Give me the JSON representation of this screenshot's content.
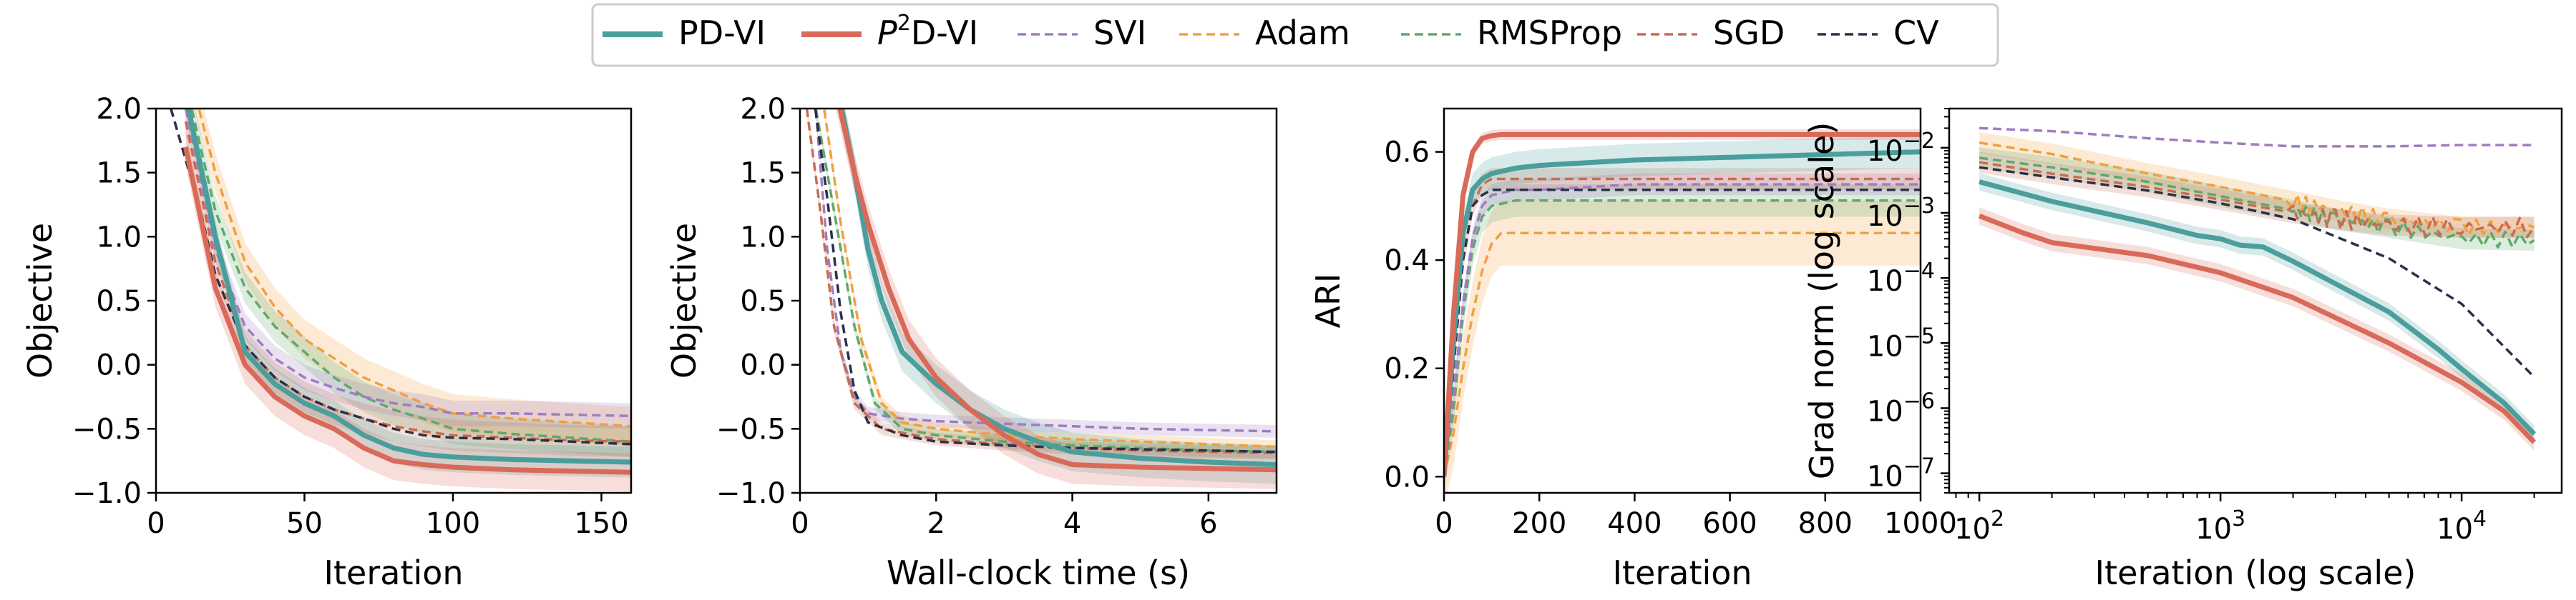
{
  "colors": {
    "pdvi": "#4a9e9b",
    "p2dvi": "#d96a5a",
    "svi": "#a07cc0",
    "adam": "#f0a040",
    "rmsprop": "#5fa86a",
    "sgd": "#c96c50",
    "cv": "#2b2f4a"
  },
  "legend": {
    "entries": [
      {
        "key": "pdvi",
        "label": "PD-VI",
        "style": "solid"
      },
      {
        "key": "p2dvi",
        "label_pre": "P",
        "label_sup": "2",
        "label_post": "D-VI",
        "style": "solid"
      },
      {
        "key": "svi",
        "label": "SVI",
        "style": "dashed"
      },
      {
        "key": "adam",
        "label": "Adam",
        "style": "dashed"
      },
      {
        "key": "rmsprop",
        "label": "RMSProp",
        "style": "dashed"
      },
      {
        "key": "sgd",
        "label": "SGD",
        "style": "dashed"
      },
      {
        "key": "cv",
        "label": "CV",
        "style": "dashed"
      }
    ]
  },
  "chart_data": [
    {
      "id": "p1",
      "type": "line",
      "xlabel": "Iteration",
      "ylabel": "Objective",
      "xlim": [
        0,
        160
      ],
      "ylim": [
        -1.0,
        2.0
      ],
      "xticks": [
        0,
        50,
        100,
        150
      ],
      "yticks": [
        -1.0,
        -0.5,
        0.0,
        0.5,
        1.0,
        1.5,
        2.0
      ],
      "xtick_labels": [
        "0",
        "50",
        "100",
        "150"
      ],
      "ytick_labels": [
        "−1.0",
        "−0.5",
        "0.0",
        "0.5",
        "1.0",
        "1.5",
        "2.0"
      ],
      "series": [
        {
          "key": "adam",
          "x": [
            10,
            20,
            30,
            40,
            50,
            60,
            70,
            80,
            90,
            100,
            120,
            140,
            160
          ],
          "y": [
            2.4,
            1.5,
            0.8,
            0.45,
            0.2,
            0.05,
            -0.1,
            -0.2,
            -0.3,
            -0.38,
            -0.42,
            -0.45,
            -0.48
          ],
          "band": 0.15
        },
        {
          "key": "rmsprop",
          "x": [
            10,
            20,
            30,
            40,
            50,
            60,
            70,
            80,
            90,
            100,
            120,
            140,
            160
          ],
          "y": [
            2.2,
            1.2,
            0.6,
            0.3,
            0.1,
            -0.1,
            -0.25,
            -0.35,
            -0.42,
            -0.5,
            -0.54,
            -0.57,
            -0.6
          ],
          "band": 0.12
        },
        {
          "key": "svi",
          "x": [
            10,
            20,
            30,
            40,
            50,
            60,
            70,
            80,
            90,
            100,
            120,
            140,
            160
          ],
          "y": [
            2.0,
            0.9,
            0.3,
            0.05,
            -0.1,
            -0.18,
            -0.25,
            -0.3,
            -0.33,
            -0.38,
            -0.38,
            -0.39,
            -0.4
          ],
          "band": 0.1
        },
        {
          "key": "sgd",
          "x": [
            10,
            20,
            30,
            40,
            50,
            60,
            70,
            80,
            90,
            100,
            120,
            140,
            160
          ],
          "y": [
            1.9,
            0.8,
            0.15,
            -0.1,
            -0.25,
            -0.35,
            -0.42,
            -0.48,
            -0.52,
            -0.55,
            -0.57,
            -0.59,
            -0.6
          ],
          "band": 0.12
        },
        {
          "key": "cv",
          "x": [
            5,
            10,
            15,
            20,
            30,
            40,
            50,
            60,
            70,
            80,
            90,
            100,
            120,
            140,
            160
          ],
          "y": [
            2.0,
            1.6,
            1.2,
            0.7,
            0.15,
            -0.1,
            -0.25,
            -0.35,
            -0.42,
            -0.5,
            -0.55,
            -0.57,
            -0.58,
            -0.6,
            -0.62
          ],
          "band": 0.0
        },
        {
          "key": "pdvi",
          "x": [
            10,
            20,
            30,
            40,
            50,
            60,
            70,
            80,
            90,
            100,
            120,
            140,
            160
          ],
          "y": [
            2.1,
            1.0,
            0.1,
            -0.15,
            -0.3,
            -0.4,
            -0.55,
            -0.65,
            -0.7,
            -0.72,
            -0.74,
            -0.75,
            -0.76
          ],
          "band": 0.12
        },
        {
          "key": "p2dvi",
          "x": [
            10,
            20,
            30,
            40,
            50,
            60,
            70,
            80,
            90,
            100,
            120,
            140,
            160
          ],
          "y": [
            1.7,
            0.6,
            0.0,
            -0.25,
            -0.4,
            -0.5,
            -0.65,
            -0.75,
            -0.78,
            -0.8,
            -0.82,
            -0.83,
            -0.84
          ],
          "band": 0.15
        }
      ]
    },
    {
      "id": "p2",
      "type": "line",
      "xlabel": "Wall-clock time (s)",
      "ylabel": "Objective",
      "xlim": [
        0,
        7
      ],
      "ylim": [
        -1.0,
        2.0
      ],
      "xticks": [
        0,
        2,
        4,
        6
      ],
      "yticks": [
        -1.0,
        -0.5,
        0.0,
        0.5,
        1.0,
        1.5,
        2.0
      ],
      "xtick_labels": [
        "0",
        "2",
        "4",
        "6"
      ],
      "ytick_labels": [
        "−1.0",
        "−0.5",
        "0.0",
        "0.5",
        "1.0",
        "1.5",
        "2.0"
      ],
      "series": [
        {
          "key": "svi",
          "x": [
            0.2,
            0.4,
            0.6,
            0.8,
            1.0,
            1.5,
            2.0,
            3.0,
            4.0,
            5.0,
            6.0,
            7.0
          ],
          "y": [
            2.2,
            0.9,
            0.1,
            -0.25,
            -0.38,
            -0.42,
            -0.44,
            -0.46,
            -0.48,
            -0.5,
            -0.51,
            -0.52
          ],
          "band": 0.05
        },
        {
          "key": "adam",
          "x": [
            0.3,
            0.6,
            0.9,
            1.2,
            1.5,
            2.0,
            3.0,
            4.0,
            5.0,
            6.0,
            7.0
          ],
          "y": [
            2.2,
            1.1,
            0.2,
            -0.3,
            -0.45,
            -0.5,
            -0.55,
            -0.58,
            -0.6,
            -0.62,
            -0.64
          ],
          "band": 0.05
        },
        {
          "key": "rmsprop",
          "x": [
            0.2,
            0.5,
            0.8,
            1.1,
            1.5,
            2.0,
            3.0,
            4.0,
            5.0,
            6.0,
            7.0
          ],
          "y": [
            2.1,
            1.2,
            0.3,
            -0.3,
            -0.5,
            -0.55,
            -0.6,
            -0.63,
            -0.65,
            -0.67,
            -0.68
          ],
          "band": 0.05
        },
        {
          "key": "sgd",
          "x": [
            0.1,
            0.3,
            0.5,
            0.8,
            1.2,
            2.0,
            3.0,
            4.0,
            5.0,
            6.0,
            7.0
          ],
          "y": [
            2.0,
            1.2,
            0.3,
            -0.3,
            -0.5,
            -0.58,
            -0.62,
            -0.65,
            -0.67,
            -0.68,
            -0.69
          ],
          "band": 0.05
        },
        {
          "key": "cv",
          "x": [
            0.2,
            0.4,
            0.6,
            0.8,
            1.0,
            1.5,
            2.0,
            3.0,
            4.0,
            5.0,
            6.0,
            7.0
          ],
          "y": [
            2.1,
            1.3,
            0.4,
            -0.2,
            -0.45,
            -0.55,
            -0.6,
            -0.63,
            -0.65,
            -0.66,
            -0.67,
            -0.68
          ],
          "band": 0.0
        },
        {
          "key": "pdvi",
          "x": [
            0.5,
            0.8,
            1.0,
            1.2,
            1.5,
            2.0,
            2.5,
            3.0,
            3.5,
            4.0,
            5.0,
            6.0,
            7.0
          ],
          "y": [
            2.3,
            1.5,
            0.9,
            0.5,
            0.1,
            -0.15,
            -0.35,
            -0.5,
            -0.6,
            -0.68,
            -0.73,
            -0.76,
            -0.78
          ],
          "band": 0.15
        },
        {
          "key": "p2dvi",
          "x": [
            0.5,
            0.8,
            1.0,
            1.3,
            1.6,
            2.0,
            2.5,
            3.0,
            3.5,
            4.0,
            5.0,
            6.0,
            7.0
          ],
          "y": [
            2.2,
            1.5,
            1.1,
            0.6,
            0.2,
            -0.1,
            -0.35,
            -0.55,
            -0.7,
            -0.78,
            -0.8,
            -0.81,
            -0.82
          ],
          "band": 0.15
        }
      ]
    },
    {
      "id": "p3",
      "type": "line",
      "xlabel": "Iteration",
      "ylabel": "ARI",
      "xlim": [
        0,
        1000
      ],
      "ylim": [
        -0.03,
        0.68
      ],
      "xticks": [
        0,
        200,
        400,
        600,
        800,
        1000
      ],
      "yticks": [
        0.0,
        0.2,
        0.4,
        0.6
      ],
      "xtick_labels": [
        "0",
        "200",
        "400",
        "600",
        "800",
        "1000"
      ],
      "ytick_labels": [
        "0.0",
        "0.2",
        "0.4",
        "0.6"
      ],
      "series": [
        {
          "key": "adam",
          "x": [
            0,
            20,
            40,
            60,
            80,
            100,
            120,
            150,
            200,
            400,
            600,
            800,
            1000
          ],
          "y": [
            0.0,
            0.08,
            0.2,
            0.3,
            0.38,
            0.43,
            0.45,
            0.45,
            0.45,
            0.45,
            0.45,
            0.45,
            0.45
          ],
          "band": 0.06
        },
        {
          "key": "rmsprop",
          "x": [
            0,
            20,
            40,
            60,
            80,
            100,
            150,
            200,
            400,
            600,
            800,
            1000
          ],
          "y": [
            0.0,
            0.12,
            0.3,
            0.42,
            0.48,
            0.5,
            0.51,
            0.51,
            0.51,
            0.51,
            0.51,
            0.51
          ],
          "band": 0.03
        },
        {
          "key": "svi",
          "x": [
            0,
            20,
            40,
            60,
            80,
            100,
            150,
            200,
            400,
            600,
            800,
            1000
          ],
          "y": [
            0.0,
            0.15,
            0.32,
            0.44,
            0.5,
            0.52,
            0.53,
            0.53,
            0.54,
            0.54,
            0.54,
            0.54
          ],
          "band": 0.02
        },
        {
          "key": "sgd",
          "x": [
            0,
            20,
            40,
            60,
            80,
            100,
            150,
            200,
            400,
            600,
            800,
            1000
          ],
          "y": [
            0.0,
            0.2,
            0.4,
            0.5,
            0.54,
            0.55,
            0.55,
            0.55,
            0.55,
            0.55,
            0.55,
            0.55
          ],
          "band": 0.02
        },
        {
          "key": "cv",
          "x": [
            0,
            20,
            40,
            60,
            80,
            100,
            150,
            200,
            400,
            600,
            800,
            1000
          ],
          "y": [
            0.0,
            0.2,
            0.4,
            0.5,
            0.52,
            0.53,
            0.53,
            0.53,
            0.53,
            0.53,
            0.53,
            0.53
          ],
          "band": 0.0
        },
        {
          "key": "pdvi",
          "x": [
            0,
            20,
            40,
            60,
            80,
            100,
            150,
            200,
            400,
            600,
            800,
            1000
          ],
          "y": [
            0.0,
            0.25,
            0.45,
            0.53,
            0.55,
            0.56,
            0.57,
            0.575,
            0.585,
            0.59,
            0.595,
            0.6
          ],
          "band": 0.03
        },
        {
          "key": "p2dvi",
          "x": [
            0,
            20,
            40,
            60,
            80,
            100,
            120,
            150,
            200,
            400,
            600,
            800,
            1000
          ],
          "y": [
            0.0,
            0.3,
            0.52,
            0.6,
            0.625,
            0.63,
            0.632,
            0.632,
            0.632,
            0.632,
            0.632,
            0.632,
            0.632
          ],
          "band": 0.01
        }
      ]
    },
    {
      "id": "p4",
      "type": "line",
      "scale": "loglog",
      "xlabel": "Iteration (log scale)",
      "ylabel": "Grad norm (log scale)",
      "xlim": [
        75,
        26000
      ],
      "ylim": [
        5e-08,
        0.04
      ],
      "xticks": [
        100,
        1000,
        10000
      ],
      "yticks": [
        1e-07,
        1e-06,
        1e-05,
        0.0001,
        0.001,
        0.01
      ],
      "xtick_labels": [
        {
          "b": "10",
          "e": "2"
        },
        {
          "b": "10",
          "e": "3"
        },
        {
          "b": "10",
          "e": "4"
        }
      ],
      "ytick_labels": [
        {
          "b": "10",
          "e": "−7"
        },
        {
          "b": "10",
          "e": "−6"
        },
        {
          "b": "10",
          "e": "−5"
        },
        {
          "b": "10",
          "e": "−4"
        },
        {
          "b": "10",
          "e": "−3"
        },
        {
          "b": "10",
          "e": "−2"
        }
      ],
      "series": [
        {
          "key": "svi",
          "x": [
            100,
            200,
            500,
            1000,
            2000,
            5000,
            10000,
            20000
          ],
          "y": [
            0.02,
            0.018,
            0.014,
            0.012,
            0.0105,
            0.0105,
            0.011,
            0.011
          ],
          "band": 0.0
        },
        {
          "key": "adam",
          "x": [
            100,
            200,
            500,
            1000,
            2000,
            3000,
            5000,
            10000,
            20000
          ],
          "y": [
            0.012,
            0.008,
            0.004,
            0.0025,
            0.0015,
            0.0011,
            0.0008,
            0.0006,
            0.0006
          ],
          "band": 0.15,
          "noise": 0.12
        },
        {
          "key": "rmsprop",
          "x": [
            100,
            200,
            500,
            1000,
            2000,
            3000,
            5000,
            10000,
            20000
          ],
          "y": [
            0.007,
            0.005,
            0.003,
            0.0018,
            0.0011,
            0.0008,
            0.0006,
            0.0004,
            0.00038
          ],
          "band": 0.15,
          "noise": 0.12
        },
        {
          "key": "sgd",
          "x": [
            100,
            200,
            500,
            1000,
            2000,
            3000,
            5000,
            10000,
            20000
          ],
          "y": [
            0.006,
            0.004,
            0.0025,
            0.0016,
            0.001,
            0.0008,
            0.00065,
            0.0006,
            0.0006
          ],
          "band": 0.15,
          "noise": 0.15
        },
        {
          "key": "cv",
          "x": [
            100,
            200,
            500,
            1000,
            2000,
            5000,
            10000,
            20000
          ],
          "y": [
            0.005,
            0.0035,
            0.0022,
            0.0014,
            0.0008,
            0.0002,
            4e-05,
            3e-06
          ],
          "band": 0.0
        },
        {
          "key": "pdvi",
          "x": [
            100,
            200,
            500,
            800,
            1000,
            1200,
            1500,
            2000,
            5000,
            8000,
            10000,
            15000,
            20000
          ],
          "y": [
            0.003,
            0.0015,
            0.0007,
            0.00045,
            0.0004,
            0.00032,
            0.0003,
            0.00018,
            3e-05,
            8e-06,
            4e-06,
            1.2e-06,
            4e-07
          ],
          "band": 0.12
        },
        {
          "key": "p2dvi",
          "x": [
            100,
            150,
            200,
            500,
            1000,
            2000,
            5000,
            10000,
            15000,
            20000
          ],
          "y": [
            0.0009,
            0.0005,
            0.00035,
            0.00022,
            0.00012,
            5e-05,
            1e-05,
            2.5e-06,
            9e-07,
            3e-07
          ],
          "band": 0.12
        }
      ]
    }
  ]
}
